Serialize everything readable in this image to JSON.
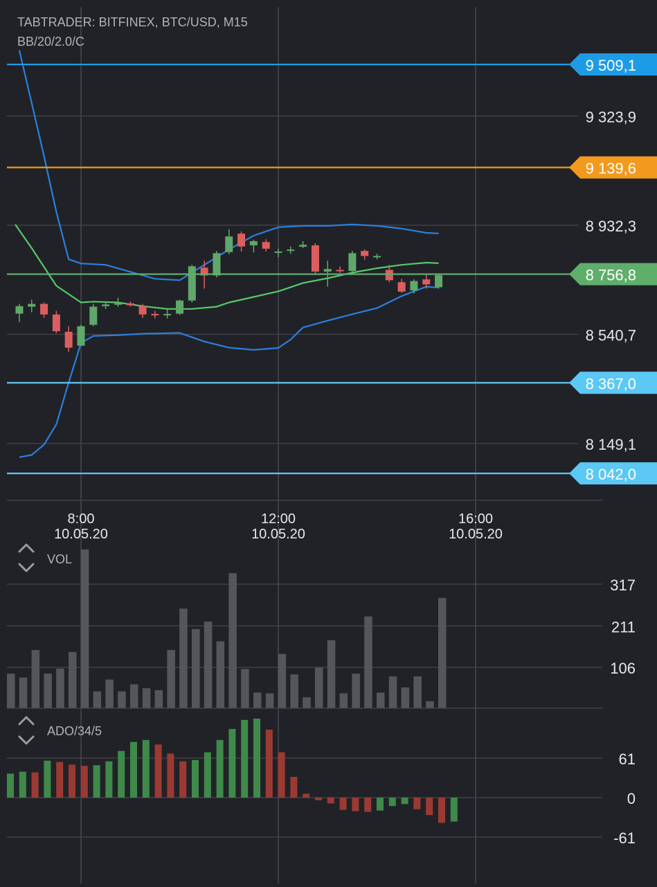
{
  "header": {
    "title": "TABTRADER: BITFINEX, BTC/USD, M15",
    "indicator": "BB/20/2.0/C"
  },
  "colors": {
    "background": "#212227",
    "grid": "#45474c",
    "text": "#e8e8e8",
    "muted_text": "#b0b2b7",
    "candle_up": "#5fa86a",
    "candle_down": "#dc5f5f",
    "bollinger": "#2b7fe0",
    "sma": "#57c96a",
    "vol_bar": "#55565a",
    "ado_up": "#3f8a4a",
    "ado_down": "#9b3a33"
  },
  "chart_data": [
    {
      "type": "candlestick",
      "name": "price",
      "x_unit": "15-minute bars, time of 10.05.20",
      "x_range": [
        "06:40",
        "18:45"
      ],
      "y_range": [
        7950,
        9620
      ],
      "y_ticks": [
        "9 509,1",
        "9 323,9",
        "9 139,6",
        "8 932,3",
        "8 756,8",
        "8 540,7",
        "8 367,0",
        "8 149,1",
        "8 042,0"
      ],
      "x_ticks": [
        {
          "time": "8:00",
          "date": "10.05.20"
        },
        {
          "time": "12:00",
          "date": "10.05.20"
        },
        {
          "time": "16:00",
          "date": "10.05.20"
        }
      ],
      "horizontal_lines": [
        {
          "value": 9509.1,
          "label": "9 509,1",
          "color": "#1e9be6"
        },
        {
          "value": 9139.6,
          "label": "9 139,6",
          "color": "#f39a1e"
        },
        {
          "value": 8756.8,
          "label": "8 756,8",
          "color": "#5fae6c"
        },
        {
          "value": 8367.0,
          "label": "8 367,0",
          "color": "#5bc8f5"
        },
        {
          "value": 8042.0,
          "label": "8 042,0",
          "color": "#5bc8f5"
        }
      ],
      "candles": [
        {
          "t": "06:45",
          "o": 8615,
          "h": 8650,
          "l": 8585,
          "c": 8642
        },
        {
          "t": "07:00",
          "o": 8640,
          "h": 8665,
          "l": 8620,
          "c": 8650
        },
        {
          "t": "07:15",
          "o": 8650,
          "h": 8655,
          "l": 8600,
          "c": 8612
        },
        {
          "t": "07:30",
          "o": 8612,
          "h": 8625,
          "l": 8545,
          "c": 8552
        },
        {
          "t": "07:45",
          "o": 8550,
          "h": 8570,
          "l": 8478,
          "c": 8493
        },
        {
          "t": "08:00",
          "o": 8500,
          "h": 8575,
          "l": 8500,
          "c": 8570
        },
        {
          "t": "08:15",
          "o": 8575,
          "h": 8650,
          "l": 8570,
          "c": 8640
        },
        {
          "t": "08:30",
          "o": 8642,
          "h": 8655,
          "l": 8632,
          "c": 8648
        },
        {
          "t": "08:45",
          "o": 8648,
          "h": 8672,
          "l": 8640,
          "c": 8652
        },
        {
          "t": "09:00",
          "o": 8652,
          "h": 8658,
          "l": 8640,
          "c": 8645
        },
        {
          "t": "09:15",
          "o": 8642,
          "h": 8650,
          "l": 8600,
          "c": 8612
        },
        {
          "t": "09:30",
          "o": 8614,
          "h": 8625,
          "l": 8598,
          "c": 8612
        },
        {
          "t": "09:45",
          "o": 8612,
          "h": 8630,
          "l": 8598,
          "c": 8614
        },
        {
          "t": "10:00",
          "o": 8615,
          "h": 8665,
          "l": 8610,
          "c": 8662
        },
        {
          "t": "10:15",
          "o": 8662,
          "h": 8790,
          "l": 8655,
          "c": 8785
        },
        {
          "t": "10:30",
          "o": 8780,
          "h": 8805,
          "l": 8705,
          "c": 8752
        },
        {
          "t": "10:45",
          "o": 8752,
          "h": 8840,
          "l": 8745,
          "c": 8832
        },
        {
          "t": "11:00",
          "o": 8836,
          "h": 8918,
          "l": 8828,
          "c": 8892
        },
        {
          "t": "11:15",
          "o": 8902,
          "h": 8910,
          "l": 8838,
          "c": 8856
        },
        {
          "t": "11:30",
          "o": 8860,
          "h": 8880,
          "l": 8835,
          "c": 8875
        },
        {
          "t": "11:45",
          "o": 8872,
          "h": 8882,
          "l": 8838,
          "c": 8848
        },
        {
          "t": "12:00",
          "o": 8838,
          "h": 8848,
          "l": 8818,
          "c": 8838
        },
        {
          "t": "12:15",
          "o": 8840,
          "h": 8856,
          "l": 8830,
          "c": 8845
        },
        {
          "t": "12:30",
          "o": 8855,
          "h": 8875,
          "l": 8850,
          "c": 8862
        },
        {
          "t": "12:45",
          "o": 8860,
          "h": 8868,
          "l": 8760,
          "c": 8766
        },
        {
          "t": "13:00",
          "o": 8766,
          "h": 8805,
          "l": 8712,
          "c": 8775
        },
        {
          "t": "13:15",
          "o": 8772,
          "h": 8785,
          "l": 8762,
          "c": 8768
        },
        {
          "t": "13:30",
          "o": 8768,
          "h": 8840,
          "l": 8762,
          "c": 8832
        },
        {
          "t": "13:45",
          "o": 8840,
          "h": 8846,
          "l": 8808,
          "c": 8822
        },
        {
          "t": "14:00",
          "o": 8818,
          "h": 8830,
          "l": 8810,
          "c": 8822
        },
        {
          "t": "14:15",
          "o": 8772,
          "h": 8790,
          "l": 8728,
          "c": 8735
        },
        {
          "t": "14:30",
          "o": 8728,
          "h": 8740,
          "l": 8690,
          "c": 8694
        },
        {
          "t": "14:45",
          "o": 8698,
          "h": 8738,
          "l": 8688,
          "c": 8732
        },
        {
          "t": "15:00",
          "o": 8738,
          "h": 8755,
          "l": 8705,
          "c": 8720
        },
        {
          "t": "15:15",
          "o": 8710,
          "h": 8760,
          "l": 8705,
          "c": 8753
        }
      ],
      "bollinger_upper": [
        [
          "06:45",
          9560
        ],
        [
          "07:00",
          9370
        ],
        [
          "07:15",
          9180
        ],
        [
          "07:30",
          8980
        ],
        [
          "07:45",
          8810
        ],
        [
          "08:00",
          8795
        ],
        [
          "08:30",
          8790
        ],
        [
          "09:00",
          8765
        ],
        [
          "09:30",
          8740
        ],
        [
          "10:00",
          8735
        ],
        [
          "10:30",
          8790
        ],
        [
          "11:00",
          8845
        ],
        [
          "11:30",
          8895
        ],
        [
          "12:00",
          8925
        ],
        [
          "12:30",
          8930
        ],
        [
          "13:00",
          8930
        ],
        [
          "13:30",
          8935
        ],
        [
          "14:00",
          8930
        ],
        [
          "14:30",
          8920
        ],
        [
          "15:00",
          8905
        ],
        [
          "15:15",
          8903
        ]
      ],
      "sma_middle": [
        [
          "06:40",
          8935
        ],
        [
          "07:00",
          8850
        ],
        [
          "07:30",
          8715
        ],
        [
          "08:00",
          8655
        ],
        [
          "08:15",
          8658
        ],
        [
          "08:45",
          8655
        ],
        [
          "09:15",
          8642
        ],
        [
          "09:45",
          8632
        ],
        [
          "10:15",
          8632
        ],
        [
          "10:45",
          8640
        ],
        [
          "11:00",
          8655
        ],
        [
          "11:30",
          8675
        ],
        [
          "12:00",
          8695
        ],
        [
          "12:30",
          8725
        ],
        [
          "13:00",
          8742
        ],
        [
          "13:30",
          8762
        ],
        [
          "14:00",
          8778
        ],
        [
          "14:30",
          8790
        ],
        [
          "15:00",
          8798
        ],
        [
          "15:15",
          8796
        ]
      ],
      "bollinger_lower": [
        [
          "06:45",
          8100
        ],
        [
          "07:00",
          8108
        ],
        [
          "07:15",
          8145
        ],
        [
          "07:30",
          8218
        ],
        [
          "07:45",
          8368
        ],
        [
          "08:00",
          8510
        ],
        [
          "08:15",
          8535
        ],
        [
          "08:45",
          8538
        ],
        [
          "09:15",
          8543
        ],
        [
          "09:45",
          8545
        ],
        [
          "10:00",
          8546
        ],
        [
          "10:30",
          8515
        ],
        [
          "11:00",
          8493
        ],
        [
          "11:30",
          8485
        ],
        [
          "12:00",
          8492
        ],
        [
          "12:15",
          8522
        ],
        [
          "12:30",
          8565
        ],
        [
          "13:00",
          8590
        ],
        [
          "13:30",
          8613
        ],
        [
          "14:00",
          8635
        ],
        [
          "14:30",
          8678
        ],
        [
          "15:00",
          8712
        ],
        [
          "15:15",
          8708
        ]
      ]
    },
    {
      "type": "bar",
      "name": "VOL",
      "label": "VOL",
      "y_range": [
        0,
        420
      ],
      "y_ticks": [
        "317",
        "211",
        "106"
      ],
      "values": [
        90,
        80,
        150,
        90,
        103,
        145,
        405,
        45,
        75,
        45,
        63,
        53,
        48,
        150,
        255,
        203,
        222,
        172,
        345,
        102,
        42,
        40,
        140,
        88,
        30,
        105,
        175,
        40,
        90,
        235,
        42,
        83,
        55,
        83,
        20,
        282
      ]
    },
    {
      "type": "bar",
      "name": "ADO",
      "label": "ADO/34/5",
      "y_range": [
        -85,
        125
      ],
      "y_ticks": [
        "61",
        "0",
        "-61"
      ],
      "values": [
        37,
        40,
        39,
        57,
        55,
        51,
        49,
        50,
        56,
        72,
        86,
        89,
        82,
        68,
        56,
        58,
        70,
        89,
        106,
        120,
        122,
        105,
        70,
        32,
        6,
        -4,
        -9,
        -19,
        -21,
        -22,
        -20,
        -13,
        -10,
        -18,
        -27,
        -39,
        -37
      ]
    }
  ]
}
